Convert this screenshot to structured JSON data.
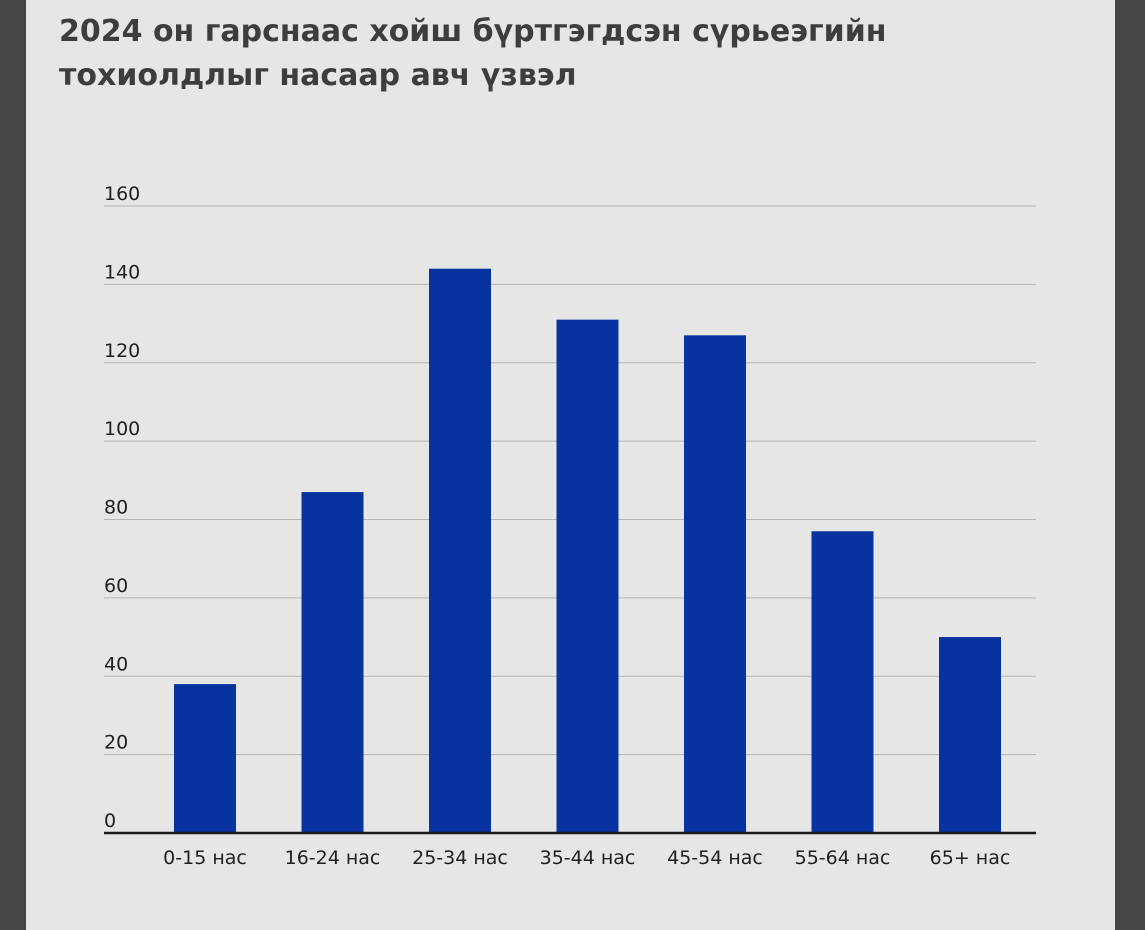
{
  "colors": {
    "background": "#e6e6e6",
    "frame": "#454545",
    "bar": "#0832a0",
    "gridline": "#b5b5b5",
    "axis": "#1a1a1a"
  },
  "chart_data": {
    "type": "bar",
    "title": "2024 он гарснаас хойш бүртгэгдсэн сүрьеэгийн тохиолдлыг насаар авч үзвэл",
    "xlabel": "",
    "ylabel": "",
    "categories": [
      "0-15 нас",
      "16-24 нас",
      "25-34 нас",
      "35-44 нас",
      "45-54 нас",
      "55-64 нас",
      "65+ нас"
    ],
    "values": [
      38,
      87,
      144,
      131,
      127,
      77,
      50
    ],
    "ylim": [
      0,
      160
    ],
    "yticks": [
      "0",
      "20",
      "40",
      "60",
      "80",
      "100",
      "120",
      "140",
      "160"
    ],
    "grid": true,
    "legend": "none"
  }
}
